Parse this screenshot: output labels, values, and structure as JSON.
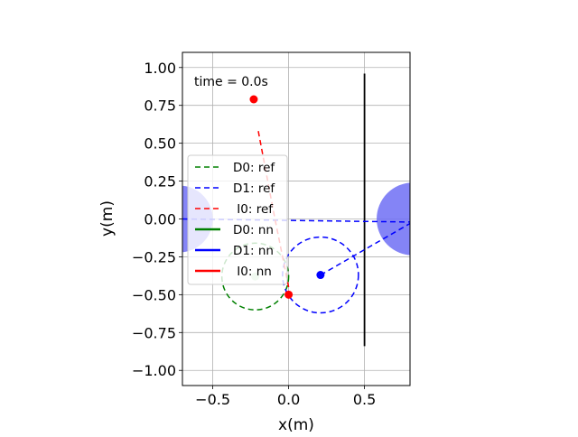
{
  "chart_data": {
    "type": "line",
    "title": "",
    "annotation": "time = 0.0s",
    "xlabel": "x(m)",
    "ylabel": "y(m)",
    "xlim": [
      -0.7,
      0.8
    ],
    "ylim": [
      -1.1,
      1.1
    ],
    "xticks": [
      -0.5,
      0.0,
      0.5
    ],
    "xtick_labels": [
      "−0.5",
      "0.0",
      "0.5"
    ],
    "yticks": [
      1.0,
      0.75,
      0.5,
      0.25,
      0.0,
      -0.25,
      -0.5,
      -0.75,
      -1.0
    ],
    "ytick_labels": [
      "1.00",
      "0.75",
      "0.50",
      "0.25",
      "0.00",
      "−0.25",
      "−0.50",
      "−0.75",
      "−1.00"
    ],
    "grid": true,
    "legend_position": "left",
    "legend": [
      {
        "label": "D0: ref",
        "color": "#008000",
        "style": "dashed"
      },
      {
        "label": "D1: ref",
        "color": "#0000ff",
        "style": "dashed"
      },
      {
        "label": " I0: ref",
        "color": "#ff0000",
        "style": "dashed"
      },
      {
        "label": "D0: nn",
        "color": "#008000",
        "style": "solid"
      },
      {
        "label": "D1: nn",
        "color": "#0000ff",
        "style": "solid"
      },
      {
        "label": " I0: nn",
        "color": "#ff0000",
        "style": "solid"
      }
    ],
    "wall": {
      "x": 0.5,
      "y": [
        -0.84,
        0.96
      ],
      "color": "#000000"
    },
    "obstacles": [
      {
        "center": [
          -0.72,
          0.0
        ],
        "radius": 0.22,
        "color": "#6f6ff5"
      },
      {
        "center": [
          0.82,
          0.0
        ],
        "radius": 0.24,
        "color": "#6f6ff5"
      }
    ],
    "circles": [
      {
        "name": "D0 capture circle",
        "center": [
          -0.22,
          -0.38
        ],
        "radius": 0.22,
        "color": "#008000",
        "style": "dashed"
      },
      {
        "name": "D1 capture circle",
        "center": [
          0.21,
          -0.37
        ],
        "radius": 0.25,
        "color": "#0000ff",
        "style": "dashed"
      }
    ],
    "points": [
      {
        "name": "I0 start",
        "x": -0.23,
        "y": 0.79,
        "color": "#ff0000"
      },
      {
        "name": "I0 current",
        "x": 0.0,
        "y": -0.5,
        "color": "#ff0000"
      },
      {
        "name": "D1 current",
        "x": 0.21,
        "y": -0.37,
        "color": "#0000ff"
      },
      {
        "name": "D0 current",
        "x": -0.22,
        "y": -0.38,
        "color": "#b8e0b8"
      }
    ],
    "series": [
      {
        "name": "D1: ref",
        "color": "#0000ff",
        "style": "dashed",
        "x": [
          -0.7,
          0.8
        ],
        "y": [
          0.0,
          -0.02
        ]
      },
      {
        "name": "D1: ref",
        "color": "#0000ff",
        "style": "dashed",
        "x": [
          0.21,
          0.8
        ],
        "y": [
          -0.37,
          -0.03
        ]
      },
      {
        "name": " I0: ref",
        "color": "#ff0000",
        "style": "dashed",
        "x": [
          -0.2,
          -0.1,
          0.0
        ],
        "y": [
          0.58,
          0.05,
          -0.45
        ]
      }
    ]
  }
}
